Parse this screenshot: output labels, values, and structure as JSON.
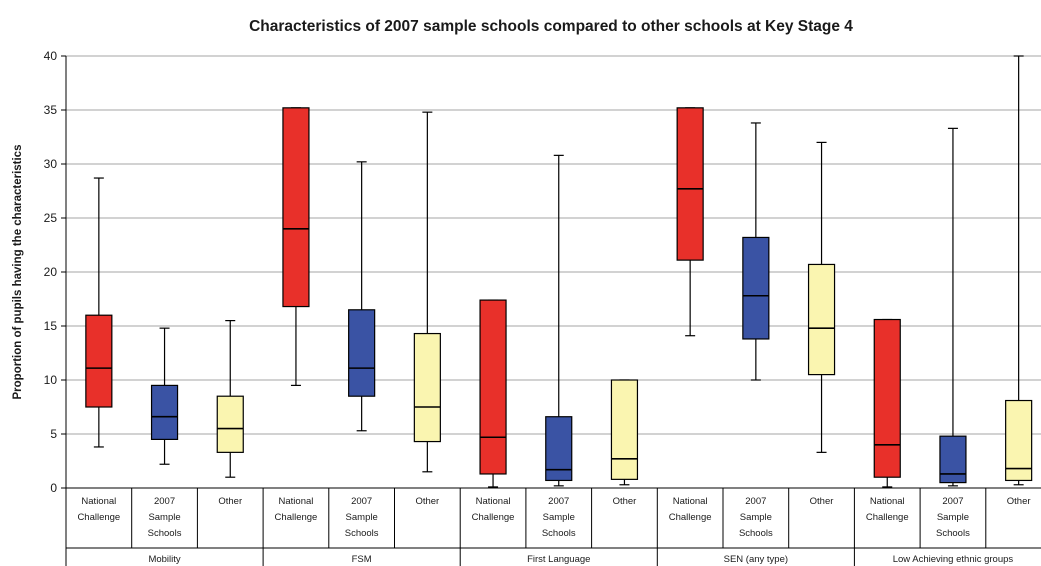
{
  "chart_data": {
    "type": "boxplot",
    "title": "Characteristics of 2007 sample schools compared to other schools at Key Stage 4",
    "ylabel": "Proportion of pupils having the characteristics",
    "xlabel": "",
    "ylim": [
      0,
      40
    ],
    "yticks": [
      "0",
      "5",
      "10",
      "15",
      "20",
      "25",
      "30",
      "35",
      "40"
    ],
    "grid": "horizontal",
    "colors": {
      "National Challenge": "#e8302a",
      "2007 Sample Schools": "#3a53a4",
      "Other": "#faf5b0"
    },
    "groups": [
      {
        "name": "Mobility",
        "boxes": [
          {
            "label": [
              "National",
              "Challenge"
            ],
            "series": "National Challenge",
            "min": 3.8,
            "q1": 7.5,
            "median": 11.1,
            "q3": 16.0,
            "max": 28.7
          },
          {
            "label": [
              "2007",
              "Sample",
              "Schools"
            ],
            "series": "2007 Sample Schools",
            "min": 2.2,
            "q1": 4.5,
            "median": 6.6,
            "q3": 9.5,
            "max": 14.8
          },
          {
            "label": [
              "Other"
            ],
            "series": "Other",
            "min": 1.0,
            "q1": 3.3,
            "median": 5.5,
            "q3": 8.5,
            "max": 15.5
          }
        ]
      },
      {
        "name": "FSM",
        "boxes": [
          {
            "label": [
              "National",
              "Challenge"
            ],
            "series": "National Challenge",
            "min": 9.5,
            "q1": 16.8,
            "median": 24.0,
            "q3": 35.2,
            "max": 35.2
          },
          {
            "label": [
              "2007",
              "Sample",
              "Schools"
            ],
            "series": "2007 Sample Schools",
            "min": 5.3,
            "q1": 8.5,
            "median": 11.1,
            "q3": 16.5,
            "max": 30.2
          },
          {
            "label": [
              "Other"
            ],
            "series": "Other",
            "min": 1.5,
            "q1": 4.3,
            "median": 7.5,
            "q3": 14.3,
            "max": 34.8
          }
        ]
      },
      {
        "name": "First Language",
        "boxes": [
          {
            "label": [
              "National",
              "Challenge"
            ],
            "series": "National Challenge",
            "min": 0.1,
            "q1": 1.3,
            "median": 4.7,
            "q3": 17.4,
            "max": 17.4
          },
          {
            "label": [
              "2007",
              "Sample",
              "Schools"
            ],
            "series": "2007 Sample Schools",
            "min": 0.2,
            "q1": 0.7,
            "median": 1.7,
            "q3": 6.6,
            "max": 30.8
          },
          {
            "label": [
              "Other"
            ],
            "series": "Other",
            "min": 0.3,
            "q1": 0.8,
            "median": 2.7,
            "q3": 10.0,
            "max": 10.0
          }
        ]
      },
      {
        "name": "SEN (any type)",
        "boxes": [
          {
            "label": [
              "National",
              "Challenge"
            ],
            "series": "National Challenge",
            "min": 14.1,
            "q1": 21.1,
            "median": 27.7,
            "q3": 35.2,
            "max": 35.2
          },
          {
            "label": [
              "2007",
              "Sample",
              "Schools"
            ],
            "series": "2007 Sample Schools",
            "min": 10.0,
            "q1": 13.8,
            "median": 17.8,
            "q3": 23.2,
            "max": 33.8
          },
          {
            "label": [
              "Other"
            ],
            "series": "Other",
            "min": 3.3,
            "q1": 10.5,
            "median": 14.8,
            "q3": 20.7,
            "max": 32.0
          }
        ]
      },
      {
        "name": "Low Achieving ethnic groups",
        "boxes": [
          {
            "label": [
              "National",
              "Challenge"
            ],
            "series": "National Challenge",
            "min": 0.1,
            "q1": 1.0,
            "median": 4.0,
            "q3": 15.6,
            "max": 15.6
          },
          {
            "label": [
              "2007",
              "Sample",
              "Schools"
            ],
            "series": "2007 Sample Schools",
            "min": 0.2,
            "q1": 0.5,
            "median": 1.3,
            "q3": 4.8,
            "max": 33.3
          },
          {
            "label": [
              "Other"
            ],
            "series": "Other",
            "min": 0.3,
            "q1": 0.7,
            "median": 1.8,
            "q3": 8.1,
            "max": 40.0
          }
        ]
      }
    ]
  }
}
